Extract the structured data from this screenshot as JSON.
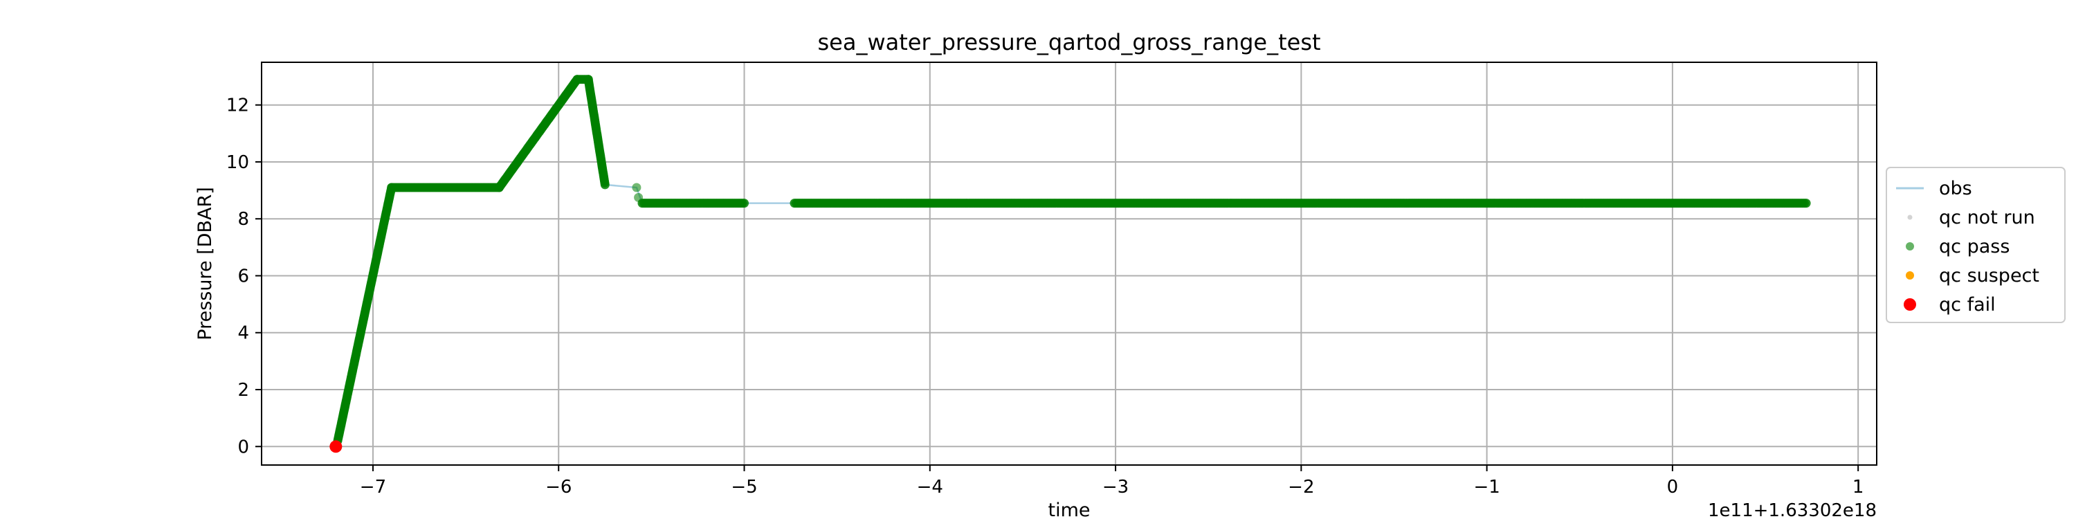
{
  "chart_data": {
    "type": "scatter",
    "title": "sea_water_pressure_qartod_gross_range_test",
    "xlabel": "time",
    "ylabel": "Pressure [DBAR]",
    "x_offset_label": "1e11+1.63302e18",
    "xlim": [
      -7.6,
      1.1
    ],
    "ylim": [
      -0.65,
      13.5
    ],
    "xticks": [
      -7,
      -6,
      -5,
      -4,
      -3,
      -2,
      -1,
      0,
      1
    ],
    "xtick_labels": [
      "−7",
      "−6",
      "−5",
      "−4",
      "−3",
      "−2",
      "−1",
      "0",
      "1"
    ],
    "yticks": [
      0,
      2,
      4,
      6,
      8,
      10,
      12
    ],
    "ytick_labels": [
      "0",
      "2",
      "4",
      "6",
      "8",
      "10",
      "12"
    ],
    "grid": true,
    "legend_position": "center-right outside",
    "legend": [
      {
        "label": "obs",
        "kind": "line",
        "color": "#a6cee3"
      },
      {
        "label": "qc not run",
        "kind": "marker",
        "color": "#d3d3d3"
      },
      {
        "label": "qc pass",
        "kind": "marker",
        "color": "#008000"
      },
      {
        "label": "qc suspect",
        "kind": "marker",
        "color": "#ffa500"
      },
      {
        "label": "qc fail",
        "kind": "marker",
        "color": "#ff0000"
      }
    ],
    "series": [
      {
        "name": "obs",
        "style": "line",
        "color": "#a6cee3",
        "points": [
          [
            -7.2,
            0
          ],
          [
            -6.9,
            9.1
          ],
          [
            -6.32,
            9.1
          ],
          [
            -5.9,
            12.9
          ],
          [
            -5.84,
            12.9
          ],
          [
            -5.75,
            9.2
          ],
          [
            -5.58,
            9.1
          ],
          [
            -5.55,
            8.55
          ],
          [
            -5.0,
            8.55
          ],
          [
            -4.73,
            8.55
          ],
          [
            0.72,
            8.55
          ]
        ]
      },
      {
        "name": "qc pass",
        "style": "markers",
        "color": "#008000",
        "segments": [
          {
            "from": [
              -7.19,
              0.2
            ],
            "to": [
              -6.9,
              9.1
            ]
          },
          {
            "from": [
              -6.9,
              9.1
            ],
            "to": [
              -6.32,
              9.1
            ]
          },
          {
            "from": [
              -6.32,
              9.1
            ],
            "to": [
              -5.9,
              12.9
            ]
          },
          {
            "from": [
              -5.9,
              12.9
            ],
            "to": [
              -5.84,
              12.9
            ]
          },
          {
            "from": [
              -5.84,
              12.9
            ],
            "to": [
              -5.75,
              9.2
            ]
          },
          {
            "from": [
              -5.55,
              8.55
            ],
            "to": [
              -5.0,
              8.55
            ]
          },
          {
            "from": [
              -4.73,
              8.55
            ],
            "to": [
              0.72,
              8.55
            ]
          }
        ],
        "points": [
          [
            -5.58,
            9.1
          ],
          [
            -5.57,
            8.75
          ]
        ]
      },
      {
        "name": "qc fail",
        "style": "markers",
        "color": "#ff0000",
        "points": [
          [
            -7.2,
            0
          ]
        ]
      }
    ]
  }
}
